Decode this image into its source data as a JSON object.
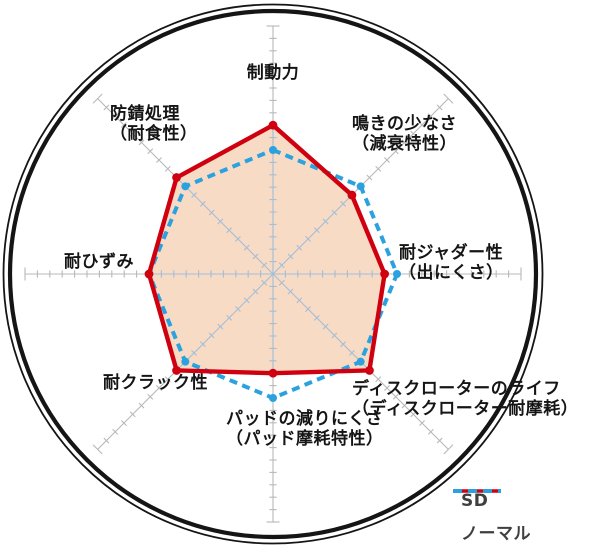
{
  "chart_data": {
    "type": "radar",
    "title": "",
    "scale": {
      "min": 0,
      "max": 10,
      "tick_step": 0.5
    },
    "axes": [
      {
        "label": "制動力",
        "sublabel": ""
      },
      {
        "label": "鳴きの少なさ",
        "sublabel": "（減衰特性）"
      },
      {
        "label": "耐ジャダー性",
        "sublabel": "（出にくさ）"
      },
      {
        "label": "ディスクローターのライフ",
        "sublabel": "（ディスクローター耐摩耗）"
      },
      {
        "label": "パッドの減りにくさ",
        "sublabel": "（パッド摩耗特性）"
      },
      {
        "label": "耐クラック性",
        "sublabel": ""
      },
      {
        "label": "耐ひずみ",
        "sublabel": ""
      },
      {
        "label": "防錆処理",
        "sublabel": "（耐食性）"
      }
    ],
    "series": [
      {
        "name": "SD",
        "style": "solid",
        "color": "#cf000f",
        "fill": "#f7dbc5",
        "values": [
          6,
          4.5,
          4.5,
          5.5,
          4,
          5.5,
          5,
          5.5
        ]
      },
      {
        "name": "ノーマル",
        "style": "dashed",
        "color": "#2ba2df",
        "fill": "none",
        "values": [
          5,
          5,
          5,
          5,
          5,
          5,
          5,
          5
        ]
      }
    ],
    "legend_position": "bottom-right",
    "grid": {
      "axis_color": "#b8b8b8",
      "inner_axis_color": "#a3bed6",
      "ring_color": "#151515",
      "axes_count": 8
    }
  },
  "legend": {
    "sd_label": "SD",
    "normal_label": "ノーマル"
  }
}
